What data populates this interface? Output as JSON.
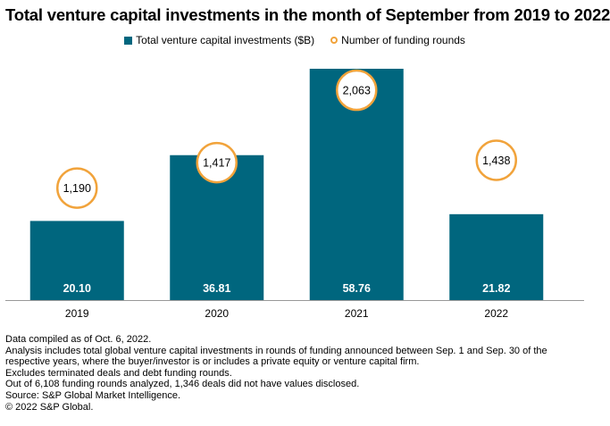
{
  "title": "Total venture capital investments in the month of September from 2019 to 2022",
  "colors": {
    "bar": "#00667e",
    "ring": "#f1a33b",
    "axis": "#999999"
  },
  "chart_data": {
    "type": "bar",
    "categories": [
      "2019",
      "2020",
      "2021",
      "2022"
    ],
    "series": [
      {
        "name": "Total venture capital investments ($B)",
        "values": [
          20.1,
          36.81,
          58.76,
          21.82
        ],
        "labels": [
          "20.10",
          "36.81",
          "58.76",
          "21.82"
        ]
      },
      {
        "name": "Number of funding rounds",
        "values": [
          1190,
          1417,
          2063,
          1438
        ],
        "labels": [
          "1,190",
          "1,417",
          "2,063",
          "1,438"
        ]
      }
    ],
    "ylim": [
      0,
      58.76
    ],
    "grid": false,
    "legend_position": "top"
  },
  "footnotes": [
    "Data compiled as of Oct. 6, 2022.",
    "Analysis includes total global venture capital investments in rounds of funding announced between Sep. 1 and Sep. 30 of the respective years, where the buyer/investor is or includes a private equity or venture capital firm.",
    "Excludes terminated deals and debt funding rounds.",
    "Out of 6,108 funding rounds analyzed, 1,346 deals did not have values disclosed.",
    "Source: S&P Global Market Intelligence.",
    "© 2022 S&P Global."
  ]
}
